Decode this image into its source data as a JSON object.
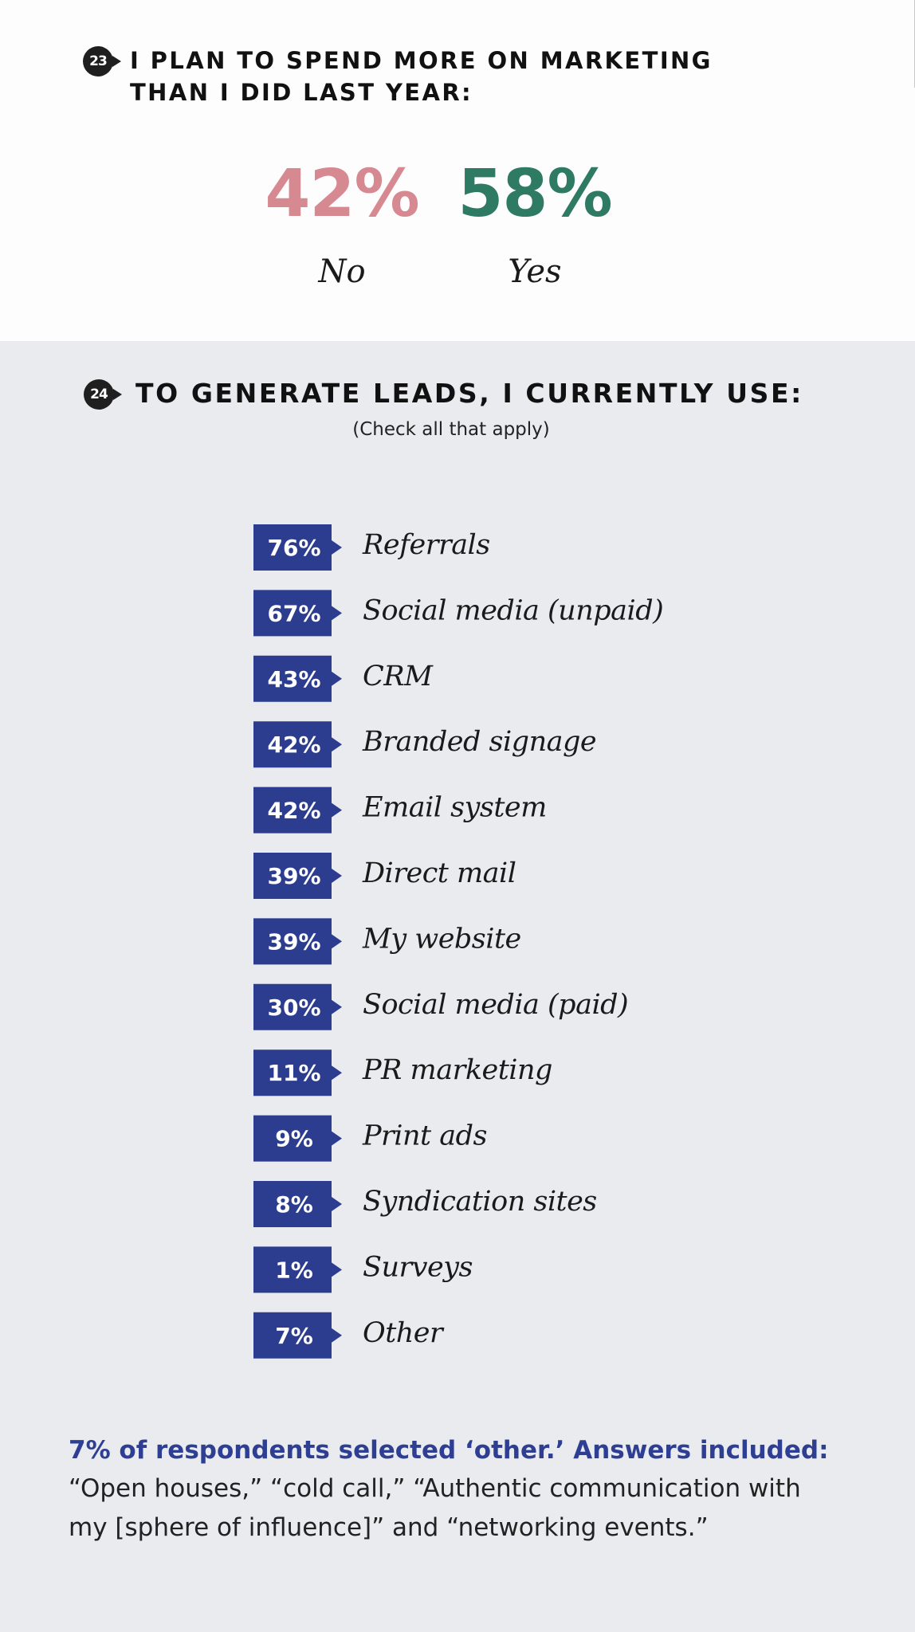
{
  "q23": {
    "number": "23",
    "title_line1": "I PLAN TO SPEND MORE ON MARKETING",
    "title_line2": "THAN I DID LAST YEAR:",
    "no_pct": "42%",
    "no_label": "No",
    "yes_pct": "58%",
    "yes_label": "Yes",
    "colors": {
      "no": "#d68991",
      "yes": "#2e7a62"
    }
  },
  "q24": {
    "number": "24",
    "title": "TO GENERATE LEADS, I CURRENTLY USE:",
    "subtitle": "(Check all that apply)"
  },
  "chart_data": [
    {
      "type": "pie",
      "title": "I PLAN TO SPEND MORE ON MARKETING THAN I DID LAST YEAR:",
      "categories": [
        "No",
        "Yes"
      ],
      "values": [
        42,
        58
      ],
      "unit": "%"
    },
    {
      "type": "bar",
      "title": "TO GENERATE LEADS, I CURRENTLY USE:",
      "subtitle": "(Check all that apply)",
      "categories": [
        "Referrals",
        "Social media (unpaid)",
        "CRM",
        "Branded signage",
        "Email system",
        "Direct mail",
        "My website",
        "Social media (paid)",
        "PR marketing",
        "Print ads",
        "Syndication sites",
        "Surveys",
        "Other"
      ],
      "values": [
        76,
        67,
        43,
        42,
        42,
        39,
        39,
        30,
        11,
        9,
        8,
        1,
        7
      ],
      "value_labels": [
        "76%",
        "67%",
        "43%",
        "42%",
        "42%",
        "39%",
        "39%",
        "30%",
        "11%",
        "9%",
        "8%",
        "1%",
        "7%"
      ],
      "unit": "%",
      "colors": {
        "tag": "#2c3d8f"
      }
    }
  ],
  "note": {
    "heading": "7% of respondents selected ‘other.’ Answers included:",
    "body": "“Open houses,” “cold call,” “Authentic communication with my [sphere of influence]” and “networking events.”"
  }
}
